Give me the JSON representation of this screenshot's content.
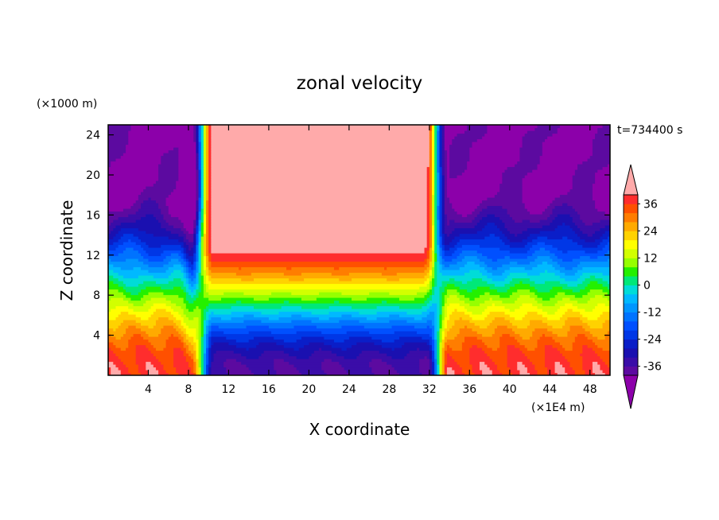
{
  "chart_data": {
    "type": "heatmap",
    "title": "zonal velocity",
    "xlabel": "X coordinate",
    "ylabel": "Z coordinate",
    "x_unit": "(×1E4 m)",
    "y_unit": "(×1000 m)",
    "time_label": "t=734400 s",
    "xlim": [
      0,
      50
    ],
    "ylim": [
      0,
      25
    ],
    "x_ticks": [
      4,
      8,
      12,
      16,
      20,
      24,
      28,
      32,
      36,
      40,
      44,
      48
    ],
    "y_ticks": [
      4,
      8,
      12,
      16,
      20,
      24
    ],
    "colorbar": {
      "levels": [
        -40,
        -36,
        -32,
        -28,
        -24,
        -20,
        -16,
        -12,
        -8,
        -4,
        0,
        4,
        8,
        12,
        16,
        20,
        24,
        28,
        32,
        36,
        40
      ],
      "tick_labels": [
        "36",
        "24",
        "12",
        "0",
        "-12",
        "-24",
        "-36"
      ],
      "tick_values": [
        36,
        24,
        12,
        0,
        -12,
        -24,
        -36
      ],
      "extend": "both",
      "colors": [
        "#5c0aa0",
        "#3a0da8",
        "#1a10b0",
        "#0a1ec8",
        "#0037e6",
        "#0050ff",
        "#0073ff",
        "#0096ff",
        "#00b9ff",
        "#00dcd8",
        "#00e878",
        "#24f000",
        "#96ff00",
        "#d2ff00",
        "#ffff00",
        "#ffd200",
        "#ffaa00",
        "#ff7d00",
        "#ff5000",
        "#ff2d2d"
      ],
      "under_color": "#8c00aa",
      "over_color": "#ffaaaa"
    },
    "field_description": {
      "jet_core_x_range": [
        9,
        31
      ],
      "jet_max_above_z": 16,
      "surface_easterly_inflow_min": -36,
      "outer_upper_level_min": -40
    }
  }
}
